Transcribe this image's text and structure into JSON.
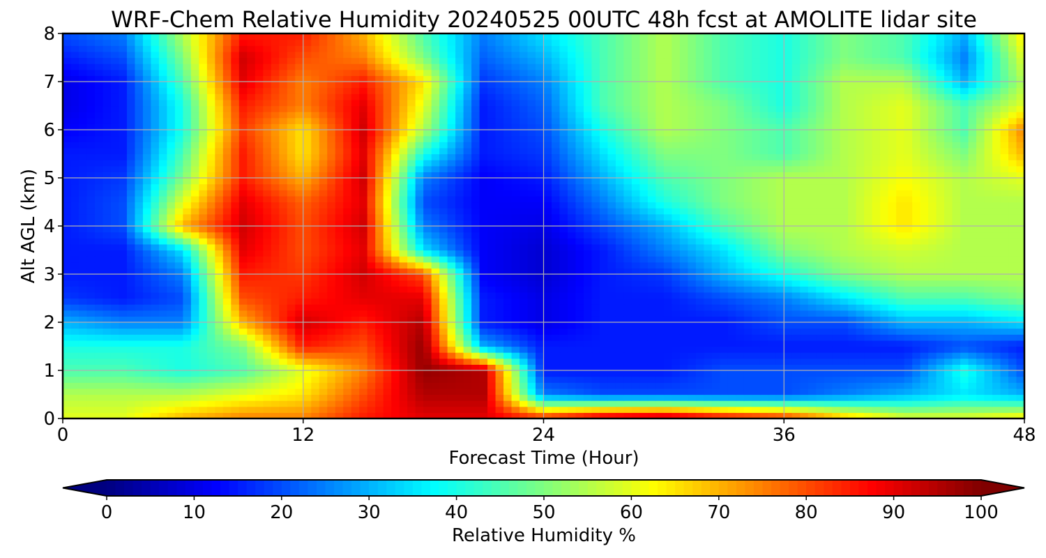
{
  "chart_data": {
    "type": "heatmap",
    "title": "WRF-Chem Relative Humidity 20240525 00UTC 48h fcst at AMOLITE lidar site",
    "xlabel": "Forecast Time (Hour)",
    "ylabel": "Alt AGL (km)",
    "xlim": [
      0,
      48
    ],
    "ylim": [
      0,
      8
    ],
    "xticks": [
      0,
      12,
      24,
      36,
      48
    ],
    "yticks": [
      0,
      1,
      2,
      3,
      4,
      5,
      6,
      7,
      8
    ],
    "grid": true,
    "colorbar": {
      "label": "Relative Humidity %",
      "orientation": "horizontal",
      "placement": "bottom",
      "colormap": "jet",
      "range": [
        0,
        100
      ],
      "ticks": [
        0,
        10,
        20,
        30,
        40,
        50,
        60,
        70,
        80,
        90,
        100
      ],
      "extend": "both"
    },
    "x": [
      0,
      3,
      6,
      9,
      12,
      15,
      18,
      21,
      24,
      27,
      30,
      33,
      36,
      39,
      42,
      45,
      48
    ],
    "y": [
      0,
      0.5,
      1,
      1.5,
      2,
      2.5,
      3,
      3.5,
      4,
      4.5,
      5,
      5.5,
      6,
      6.5,
      7,
      7.5,
      8
    ],
    "values": [
      [
        60,
        60,
        70,
        75,
        75,
        85,
        90,
        90,
        85,
        95,
        98,
        90,
        85,
        70,
        60,
        60,
        65
      ],
      [
        55,
        55,
        55,
        60,
        65,
        80,
        95,
        95,
        25,
        20,
        20,
        20,
        20,
        25,
        30,
        35,
        30
      ],
      [
        45,
        45,
        40,
        45,
        60,
        75,
        98,
        95,
        15,
        15,
        15,
        20,
        20,
        20,
        20,
        40,
        20
      ],
      [
        40,
        40,
        40,
        50,
        85,
        80,
        98,
        30,
        15,
        15,
        15,
        15,
        15,
        15,
        15,
        20,
        15
      ],
      [
        30,
        25,
        25,
        70,
        92,
        85,
        95,
        15,
        10,
        15,
        15,
        15,
        20,
        20,
        30,
        30,
        35
      ],
      [
        18,
        15,
        20,
        80,
        85,
        90,
        90,
        15,
        10,
        15,
        15,
        20,
        25,
        35,
        45,
        45,
        50
      ],
      [
        15,
        15,
        25,
        85,
        82,
        92,
        80,
        12,
        8,
        15,
        18,
        30,
        40,
        50,
        55,
        55,
        55
      ],
      [
        15,
        15,
        35,
        90,
        80,
        90,
        35,
        12,
        8,
        15,
        25,
        35,
        50,
        55,
        58,
        55,
        55
      ],
      [
        15,
        20,
        70,
        92,
        80,
        92,
        25,
        12,
        10,
        20,
        30,
        45,
        55,
        55,
        65,
        55,
        55
      ],
      [
        15,
        20,
        60,
        90,
        78,
        90,
        20,
        12,
        12,
        25,
        40,
        50,
        55,
        55,
        65,
        55,
        55
      ],
      [
        15,
        18,
        50,
        85,
        70,
        92,
        25,
        12,
        15,
        30,
        45,
        50,
        55,
        55,
        62,
        55,
        60
      ],
      [
        15,
        15,
        45,
        85,
        65,
        90,
        40,
        15,
        18,
        35,
        50,
        50,
        45,
        55,
        60,
        50,
        70
      ],
      [
        12,
        15,
        40,
        82,
        65,
        92,
        55,
        15,
        20,
        40,
        55,
        50,
        45,
        55,
        60,
        45,
        75
      ],
      [
        10,
        15,
        40,
        85,
        75,
        90,
        60,
        15,
        22,
        45,
        55,
        50,
        40,
        55,
        60,
        45,
        60
      ],
      [
        10,
        15,
        45,
        90,
        75,
        85,
        65,
        18,
        25,
        45,
        55,
        45,
        40,
        55,
        55,
        30,
        55
      ],
      [
        15,
        20,
        50,
        92,
        80,
        75,
        50,
        22,
        30,
        45,
        55,
        45,
        40,
        50,
        45,
        25,
        60
      ],
      [
        20,
        25,
        55,
        85,
        85,
        70,
        45,
        25,
        35,
        45,
        55,
        45,
        40,
        50,
        45,
        30,
        65
      ]
    ]
  }
}
